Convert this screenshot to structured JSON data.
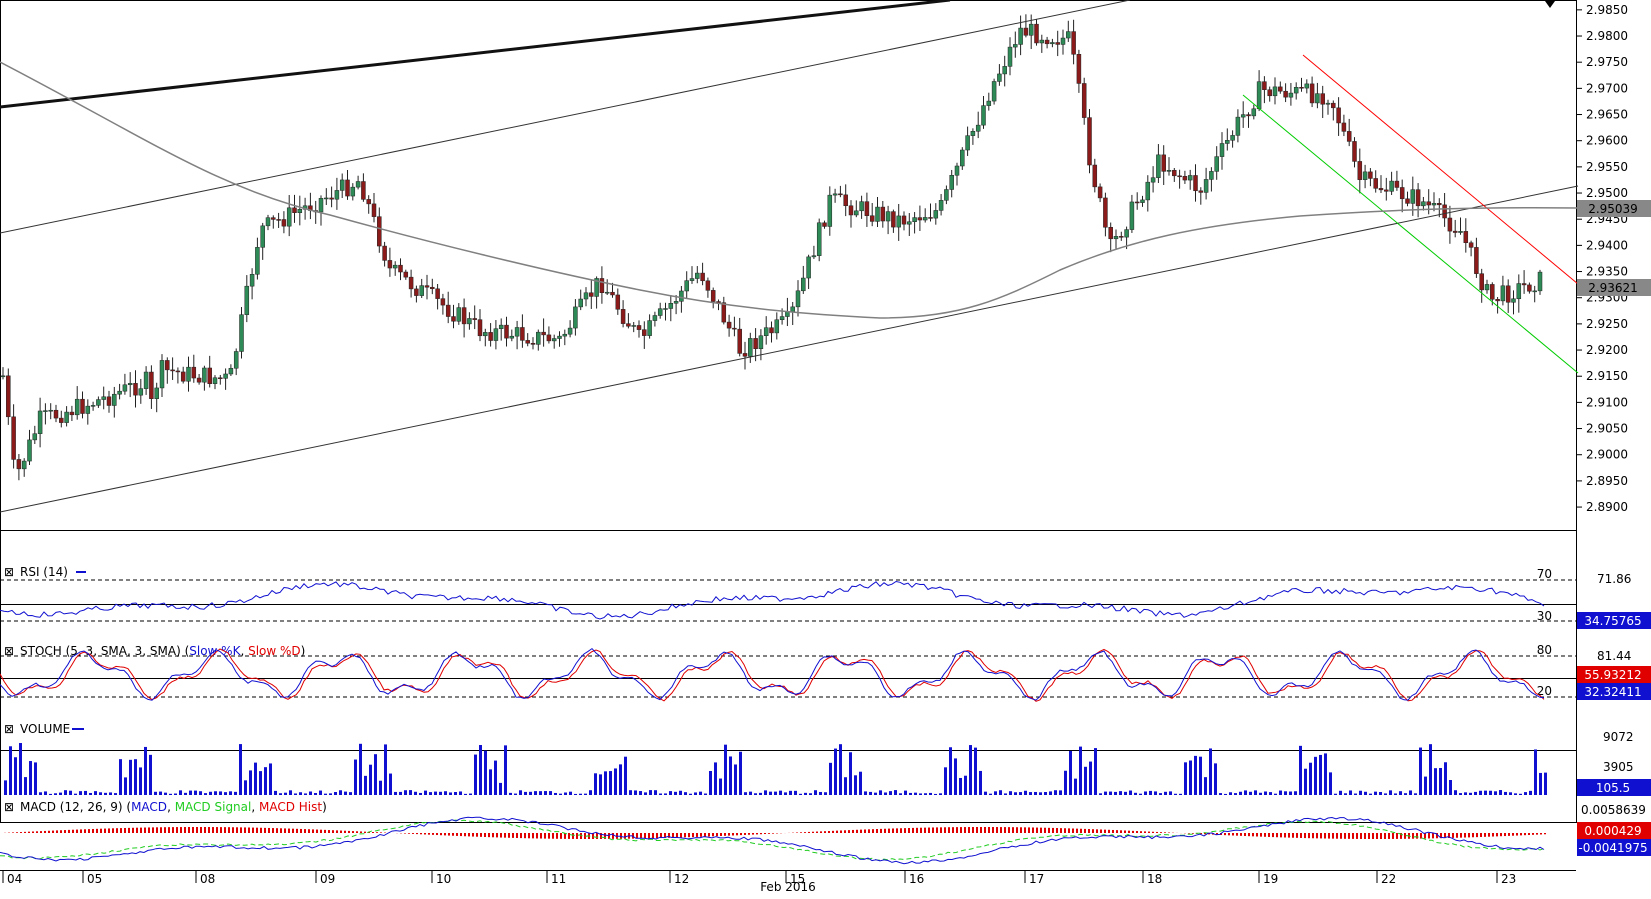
{
  "colors": {
    "bull": "#2e8b57",
    "bear": "#8b1a1a",
    "rsi": "#1010d0",
    "stoch_k": "#1010d0",
    "stoch_d": "#e00000",
    "volume": "#1010d0",
    "macd": "#1010d0",
    "macd_signal": "#22cc22",
    "macd_hist": "#e00000",
    "ma": "#808080",
    "down_channel_top": "#ff0000",
    "down_channel_bottom": "#00cc00",
    "trendline": "#333333"
  },
  "chart_data": [
    {
      "type": "candlestick",
      "series_type": "OHLC",
      "ylim": [
        2.886,
        2.9865
      ],
      "y_ticks": [
        "2.9850",
        "2.9800",
        "2.9750",
        "2.9700",
        "2.9650",
        "2.9600",
        "2.9550",
        "2.9500",
        "2.9450",
        "2.9400",
        "2.9350",
        "2.9300",
        "2.9250",
        "2.9200",
        "2.9150",
        "2.9100",
        "2.9050",
        "2.9000",
        "2.8950",
        "2.8900"
      ],
      "price_labels": [
        {
          "value": 2.95039,
          "text": "2.95039"
        },
        {
          "value": 2.93621,
          "text": "2.93621"
        }
      ],
      "x_day_labels": [
        "04",
        "05",
        "08",
        "09",
        "10",
        "11",
        "12",
        "15",
        "16",
        "17",
        "18",
        "19",
        "22",
        "23"
      ],
      "x_month_label": "Feb 2016",
      "annotations": [
        "rising channel",
        "falling channel",
        "moving average"
      ]
    },
    {
      "type": "line",
      "name": "RSI",
      "label": "RSI (14)",
      "levels": [
        "70",
        "30"
      ],
      "scale_labels": [
        "71.86"
      ],
      "current": "34.75765"
    },
    {
      "type": "line",
      "name": "STOCH",
      "label_prefix": "STOCH (5, 3, SMA, 3, SMA) (",
      "label_k": "Slow %K",
      "label_sep": ", ",
      "label_d": "Slow %D",
      "label_suffix": ")",
      "levels": [
        "80",
        "20"
      ],
      "scale_labels": [
        "81.44"
      ],
      "current_d": "55.93212",
      "current_k": "32.32411"
    },
    {
      "type": "bar",
      "name": "VOLUME",
      "label": "VOLUME",
      "scale_labels": [
        "9072",
        "3905"
      ],
      "current": "105.5"
    },
    {
      "type": "line",
      "name": "MACD",
      "label_prefix": "MACD (12, 26, 9) (",
      "label_macd": "MACD",
      "label_sep1": ", ",
      "label_signal": "MACD Signal",
      "label_sep2": ", ",
      "label_hist": "MACD Hist",
      "label_suffix": ")",
      "scale_labels": [
        "0.0058639"
      ],
      "current_hist": "0.000429",
      "current_macd": "-0.0041975"
    }
  ]
}
